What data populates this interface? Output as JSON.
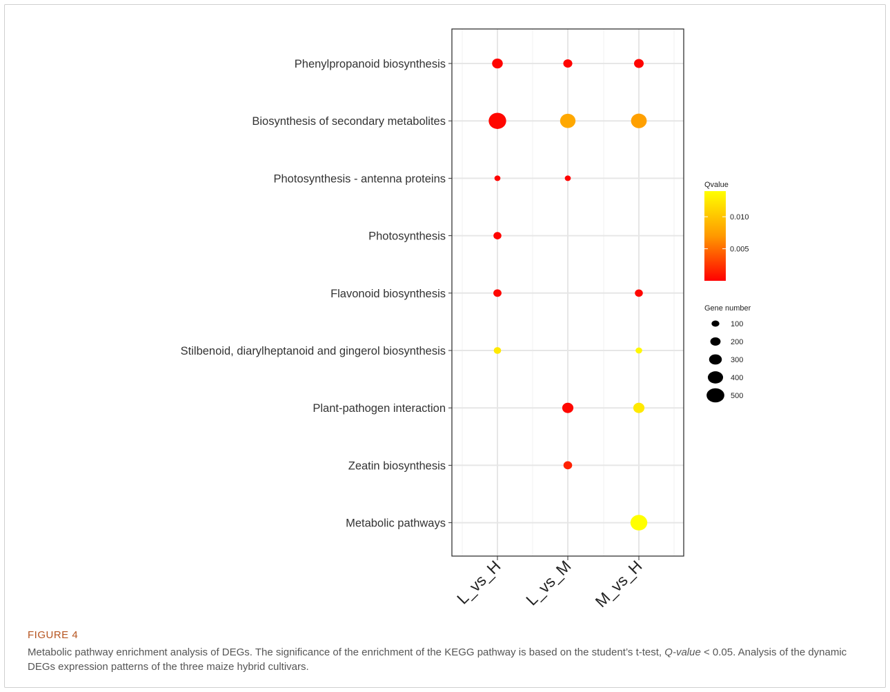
{
  "chart_data": {
    "type": "scatter",
    "x_categories": [
      "L_vs_H",
      "L_vs_M",
      "M_vs_H"
    ],
    "y_categories": [
      "Phenylpropanoid biosynthesis",
      "Biosynthesis of secondary metabolites",
      "Photosynthesis - antenna proteins",
      "Photosynthesis",
      "Flavonoid biosynthesis",
      "Stilbenoid, diarylheptanoid and gingerol biosynthesis",
      "Plant-pathogen interaction",
      "Zeatin biosynthesis",
      "Metabolic pathways"
    ],
    "points": [
      {
        "x": "L_vs_H",
        "y": "Phenylpropanoid biosynthesis",
        "gene_number": 150,
        "qvalue": 0.0002
      },
      {
        "x": "L_vs_M",
        "y": "Phenylpropanoid biosynthesis",
        "gene_number": 90,
        "qvalue": 0.0002
      },
      {
        "x": "M_vs_H",
        "y": "Phenylpropanoid biosynthesis",
        "gene_number": 110,
        "qvalue": 0.0002
      },
      {
        "x": "L_vs_H",
        "y": "Biosynthesis of secondary metabolites",
        "gene_number": 550,
        "qvalue": 0.0003
      },
      {
        "x": "L_vs_M",
        "y": "Biosynthesis of secondary metabolites",
        "gene_number": 400,
        "qvalue": 0.008
      },
      {
        "x": "M_vs_H",
        "y": "Biosynthesis of secondary metabolites",
        "gene_number": 420,
        "qvalue": 0.0075
      },
      {
        "x": "L_vs_H",
        "y": "Photosynthesis - antenna proteins",
        "gene_number": 20,
        "qvalue": 0.0001
      },
      {
        "x": "L_vs_M",
        "y": "Photosynthesis - antenna proteins",
        "gene_number": 20,
        "qvalue": 0.0001
      },
      {
        "x": "L_vs_H",
        "y": "Photosynthesis",
        "gene_number": 60,
        "qvalue": 0.0002
      },
      {
        "x": "L_vs_H",
        "y": "Flavonoid biosynthesis",
        "gene_number": 65,
        "qvalue": 0.0003
      },
      {
        "x": "M_vs_H",
        "y": "Flavonoid biosynthesis",
        "gene_number": 60,
        "qvalue": 0.0003
      },
      {
        "x": "L_vs_H",
        "y": "Stilbenoid, diarylheptanoid and gingerol biosynthesis",
        "gene_number": 45,
        "qvalue": 0.0125
      },
      {
        "x": "M_vs_H",
        "y": "Stilbenoid, diarylheptanoid and gingerol biosynthesis",
        "gene_number": 30,
        "qvalue": 0.0135
      },
      {
        "x": "L_vs_M",
        "y": "Plant-pathogen interaction",
        "gene_number": 170,
        "qvalue": 0.0003
      },
      {
        "x": "M_vs_H",
        "y": "Plant-pathogen interaction",
        "gene_number": 170,
        "qvalue": 0.0125
      },
      {
        "x": "L_vs_M",
        "y": "Zeatin biosynthesis",
        "gene_number": 80,
        "qvalue": 0.0015
      },
      {
        "x": "M_vs_H",
        "y": "Metabolic pathways",
        "gene_number": 500,
        "qvalue": 0.014
      }
    ],
    "color_legend": {
      "title": "Qvalue",
      "ticks": [
        0.01,
        0.005
      ],
      "tick_labels": [
        "0.010",
        "0.005"
      ],
      "range": [
        0,
        0.014
      ],
      "low_color": "#ff0000",
      "high_color": "#ffff00"
    },
    "size_legend": {
      "title": "Gene number",
      "values": [
        100,
        200,
        300,
        400,
        500
      ],
      "labels": [
        "100",
        "200",
        "300",
        "400",
        "500"
      ]
    },
    "grid": true,
    "legend_position": "right"
  },
  "caption": {
    "label": "FIGURE 4",
    "text_1": "Metabolic pathway enrichment analysis of DEGs. The significance of the enrichment of the KEGG pathway is based on the student’s t-test,",
    "qvalue_term": "Q-value",
    "text_2": " < 0.05. Analysis of the dynamic DEGs expression patterns of the three maize hybrid cultivars."
  }
}
